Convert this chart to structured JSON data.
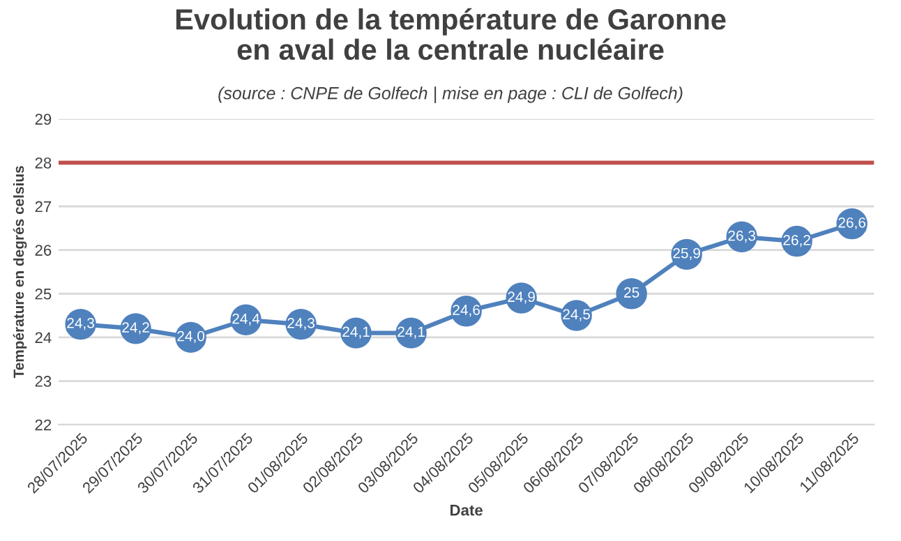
{
  "chart_data": {
    "type": "line",
    "title": "Evolution de la température de Garonne\nen aval de la centrale nucléaire",
    "subtitle": "(source : CNPE de Golfech | mise en page : CLI de Golfech)",
    "xlabel": "Date",
    "ylabel": "Température en degrés celsius",
    "categories": [
      "28/07/2025",
      "29/07/2025",
      "30/07/2025",
      "31/07/2025",
      "01/08/2025",
      "02/08/2025",
      "03/08/2025",
      "04/08/2025",
      "05/08/2025",
      "06/08/2025",
      "07/08/2025",
      "08/08/2025",
      "09/08/2025",
      "10/08/2025",
      "11/08/2025"
    ],
    "series": [
      {
        "color": "#4f81bd",
        "values": [
          24.3,
          24.2,
          24.0,
          24.4,
          24.3,
          24.1,
          24.1,
          24.6,
          24.9,
          24.5,
          25,
          25.9,
          26.3,
          26.2,
          26.6
        ],
        "value_labels": [
          "24,3",
          "24,2",
          "24,0",
          "24,4",
          "24,3",
          "24,1",
          "24,1",
          "24,6",
          "24,9",
          "24,5",
          "25",
          "25,9",
          "26,3",
          "26,2",
          "26,6"
        ]
      }
    ],
    "ylim": [
      22,
      29
    ],
    "yticks": [
      22,
      23,
      24,
      25,
      26,
      27,
      28,
      29
    ],
    "grid": "y",
    "marker": "circle",
    "line_style": "solid",
    "legend": false,
    "ref_lines": [
      {
        "axis": "y",
        "value": 28,
        "color": "#c0504d"
      }
    ]
  }
}
